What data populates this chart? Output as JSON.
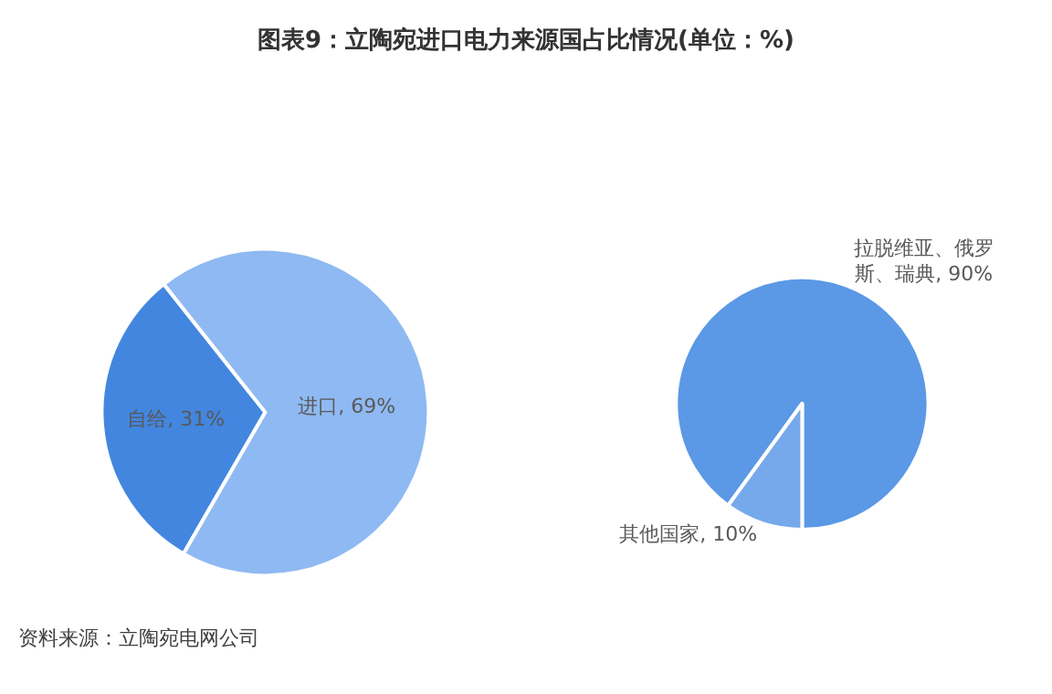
{
  "chart_data": [
    {
      "type": "pie",
      "title": "图表9：立陶宛进口电力来源国占比情况(单位：%)",
      "categories": [
        "自给",
        "进口"
      ],
      "values": [
        31,
        69
      ],
      "value_labels": [
        "31%",
        "69%"
      ],
      "colors": [
        "#4286e0",
        "#8fb9f2"
      ],
      "legend": false
    },
    {
      "type": "pie",
      "categories": [
        "拉脱维亚、俄罗斯、瑞典",
        "其他国家"
      ],
      "values": [
        90,
        10
      ],
      "value_labels": [
        "90%",
        "10%"
      ],
      "colors": [
        "#5b98e6",
        "#76a9ec"
      ],
      "legend": false,
      "annotations": [
        "资料来源：立陶宛电网公司"
      ]
    }
  ]
}
